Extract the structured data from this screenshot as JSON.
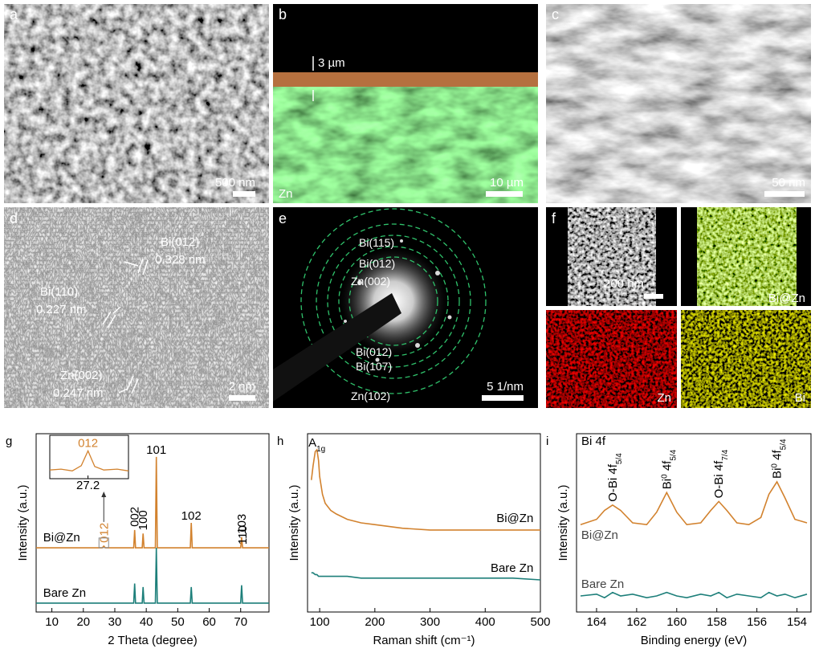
{
  "panels": {
    "a": {
      "letter": "a",
      "scale_bar": "500 nm"
    },
    "b": {
      "letter": "b",
      "thickness": "3 µm",
      "layer": "Zn",
      "scale_bar": "10 µm"
    },
    "c": {
      "letter": "c",
      "scale_bar": "50 nm"
    },
    "d": {
      "letter": "d",
      "labels": [
        "Bi(012)",
        "0.328 nm",
        "Bi(110)",
        "0.227 nm",
        "Zn(002)",
        "0.247 nm"
      ],
      "scale_bar": "2 nm"
    },
    "e": {
      "letter": "e",
      "rings": [
        "Bi(115)",
        "Bi(012)",
        "Zn(002)",
        "Bi(012)",
        "Bi(107)",
        "Zn(102)"
      ],
      "scale_bar": "5 1/nm"
    },
    "f": {
      "letter": "f",
      "scale_bar": "200 nm",
      "maps": [
        "Bi@Zn",
        "Zn",
        "Bi"
      ]
    }
  },
  "chart_data": [
    {
      "type": "line",
      "letter": "g",
      "x_label": "2 Theta (degree)",
      "y_label": "Intensity (a.u.)",
      "x": [
        5,
        26.0,
        26.5,
        27.0,
        36.0,
        36.3,
        36.6,
        38.7,
        39.0,
        39.3,
        42.9,
        43.2,
        43.5,
        54.0,
        54.3,
        54.6,
        70.0,
        70.3,
        70.6,
        79
      ],
      "series": [
        {
          "name": "Bi@Zn",
          "color": "#d2822e",
          "values": [
            3.6,
            3.6,
            3.7,
            3.6,
            3.6,
            4.6,
            3.6,
            3.6,
            4.4,
            3.6,
            3.6,
            8.7,
            3.6,
            3.6,
            5.0,
            3.6,
            3.6,
            4.2,
            3.6,
            3.6
          ]
        },
        {
          "name": "Bare Zn",
          "color": "#1d7f7a",
          "values": [
            0.5,
            0.5,
            0.5,
            0.5,
            0.5,
            1.6,
            0.5,
            0.5,
            1.4,
            0.5,
            0.5,
            3.6,
            0.5,
            0.5,
            1.4,
            0.5,
            0.5,
            1.5,
            0.5,
            0.5
          ]
        }
      ],
      "xlim": [
        5,
        79
      ],
      "xticks": [
        10,
        20,
        30,
        40,
        50,
        60,
        70
      ],
      "ylim": [
        0,
        10
      ],
      "annotations": [
        {
          "label": "012",
          "x": 26.5,
          "vertical": true,
          "color": "#d2822e"
        },
        {
          "label": "002",
          "x": 36.3,
          "vertical": true
        },
        {
          "label": "100",
          "x": 39.0,
          "vertical": true
        },
        {
          "label": "101",
          "x": 43.2,
          "vertical": false
        },
        {
          "label": "102",
          "x": 54.3,
          "vertical": false
        },
        {
          "label": "103",
          "x": 70.3,
          "vertical": true
        },
        {
          "label": "110",
          "x": 70.6,
          "vertical": true
        }
      ],
      "inset": {
        "label": "012",
        "color": "#d2822e",
        "x": [
          25.5,
          26,
          26.5,
          26.9,
          27.2,
          27.5,
          27.9,
          28.5,
          29
        ],
        "values": [
          1,
          1.1,
          0.9,
          1.5,
          3.2,
          1.4,
          1,
          1.1,
          0.9
        ],
        "xlim": [
          25.5,
          29
        ],
        "ylim": [
          0,
          5
        ],
        "xticks": [
          27.2
        ]
      }
    },
    {
      "type": "line",
      "letter": "h",
      "x_label": "Raman shift (cm⁻¹)",
      "y_label": "Intensity (a.u.)",
      "x": [
        85,
        88,
        92,
        95,
        98,
        100,
        105,
        110,
        120,
        130,
        150,
        175,
        200,
        250,
        300,
        350,
        400,
        450,
        500
      ],
      "series": [
        {
          "name": "Bi@Zn",
          "color": "#d2822e",
          "values": [
            7.4,
            8.2,
            9.0,
            9.1,
            8.5,
            7.6,
            6.6,
            6.1,
            5.7,
            5.5,
            5.2,
            5.0,
            4.9,
            4.7,
            4.6,
            4.6,
            4.6,
            4.6,
            4.6
          ]
        },
        {
          "name": "Bare Zn",
          "color": "#1d7f7a",
          "values": [
            2.2,
            2.2,
            2.1,
            2.1,
            2.0,
            2.0,
            2.0,
            2.0,
            2.0,
            2.0,
            2.0,
            1.9,
            1.9,
            1.9,
            1.9,
            1.9,
            1.9,
            1.9,
            1.8
          ]
        }
      ],
      "xlim": [
        78,
        500
      ],
      "xticks": [
        100,
        200,
        300,
        400,
        500
      ],
      "ylim": [
        0,
        10
      ],
      "annotations": [
        {
          "parts": [
            {
              "text": "A"
            },
            {
              "text": "1g",
              "shift": "sub"
            }
          ],
          "x": 95,
          "vertical": false
        }
      ]
    },
    {
      "type": "line",
      "letter": "i",
      "title": "Bi 4f",
      "x_label": "Binding energy (eV)",
      "y_label": "Intensity (a.u.)",
      "x": [
        164.8,
        164,
        163.6,
        163.2,
        162.8,
        162.2,
        161.5,
        161,
        160.5,
        160,
        159.5,
        158.8,
        158.3,
        157.9,
        157.5,
        157,
        156.4,
        155.8,
        155.4,
        155,
        154.6,
        154.1,
        153.5
      ],
      "series": [
        {
          "name": "Bi@Zn",
          "color": "#d2822e",
          "values": [
            4.9,
            5.2,
            5.7,
            6.0,
            5.7,
            5.0,
            4.9,
            5.6,
            6.7,
            5.6,
            4.9,
            5.0,
            5.7,
            6.2,
            5.7,
            5.0,
            4.9,
            5.3,
            6.6,
            7.3,
            6.4,
            5.2,
            5.0
          ]
        },
        {
          "name": "Bare Zn",
          "color": "#1d7f7a",
          "values": [
            0.9,
            1.0,
            0.8,
            1.1,
            0.9,
            1.0,
            0.8,
            0.9,
            1.1,
            0.9,
            0.8,
            1.0,
            0.9,
            1.1,
            0.8,
            1.0,
            0.9,
            0.8,
            1.1,
            0.9,
            1.0,
            0.8,
            1.0
          ]
        }
      ],
      "xlim": [
        165,
        153.3
      ],
      "xticks": [
        164,
        162,
        160,
        158,
        156,
        154
      ],
      "ylim": [
        0,
        10
      ],
      "annotations": [
        {
          "parts": [
            {
              "text": "O-Bi 4f"
            },
            {
              "text": "5/4",
              "shift": "sub"
            }
          ],
          "x": 163.2,
          "vertical": true
        },
        {
          "parts": [
            {
              "text": "Bi"
            },
            {
              "text": "0",
              "shift": "sup"
            },
            {
              "text": " 4f"
            },
            {
              "text": "5/4",
              "shift": "sub"
            }
          ],
          "x": 160.5,
          "vertical": true
        },
        {
          "parts": [
            {
              "text": "O-Bi 4f"
            },
            {
              "text": "7/4",
              "shift": "sub"
            }
          ],
          "x": 157.9,
          "vertical": true
        },
        {
          "parts": [
            {
              "text": "Bi"
            },
            {
              "text": "0",
              "shift": "sup"
            },
            {
              "text": " 4f"
            },
            {
              "text": "5/4",
              "shift": "sub"
            }
          ],
          "x": 155.0,
          "vertical": true
        }
      ]
    }
  ]
}
